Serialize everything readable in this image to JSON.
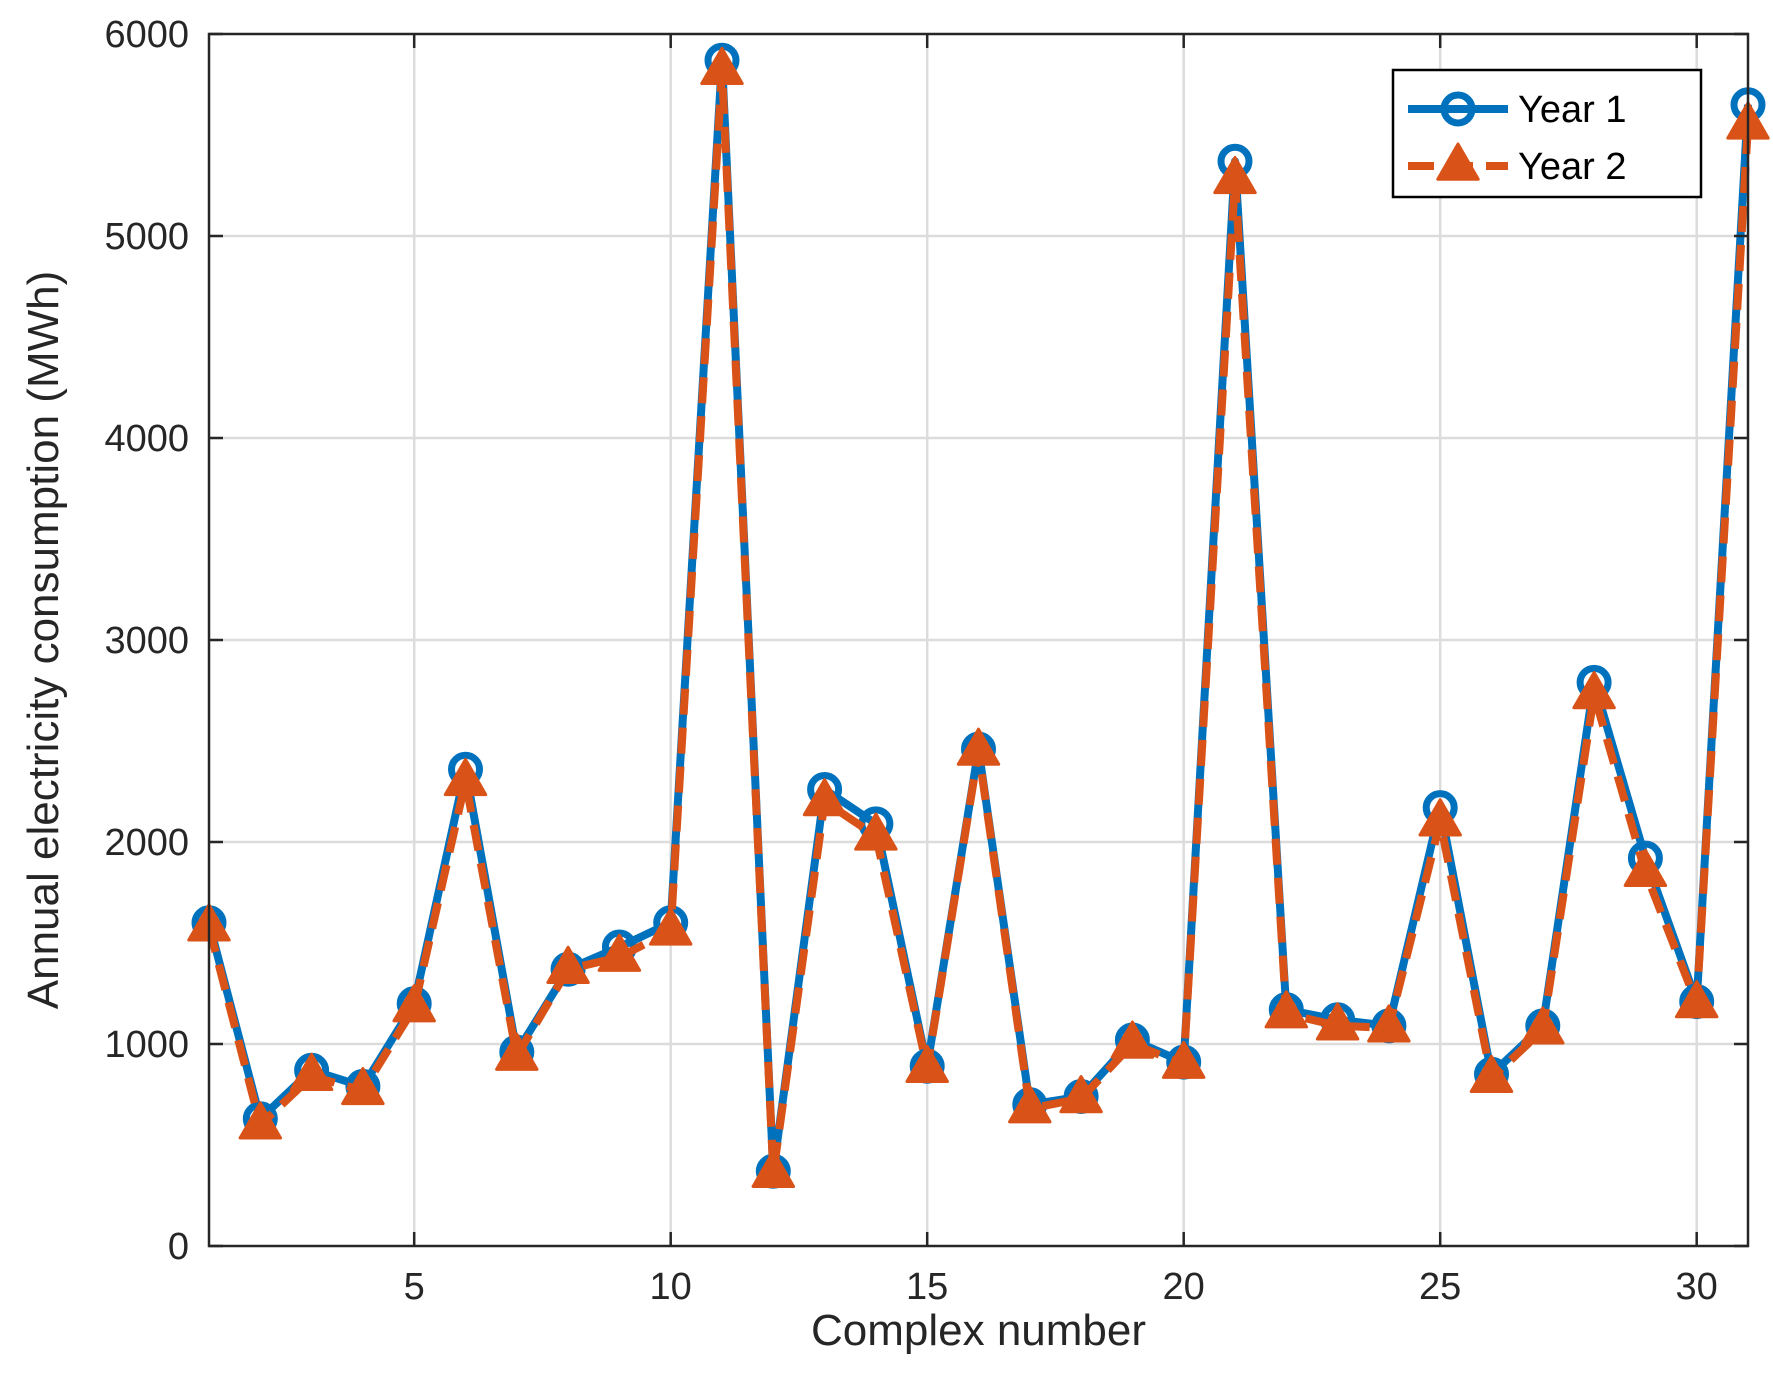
{
  "chart_data": {
    "type": "line",
    "title": "",
    "xlabel": "Complex number",
    "ylabel": "Annual electricity consumption (MWh)",
    "xlim": [
      1,
      31
    ],
    "ylim": [
      0,
      6000
    ],
    "xticks": [
      5,
      10,
      15,
      20,
      25,
      30
    ],
    "yticks": [
      0,
      1000,
      2000,
      3000,
      4000,
      5000,
      6000
    ],
    "grid": true,
    "legend_position": "top-right",
    "x": [
      1,
      2,
      3,
      4,
      5,
      6,
      7,
      8,
      9,
      10,
      11,
      12,
      13,
      14,
      15,
      16,
      17,
      18,
      19,
      20,
      21,
      22,
      23,
      24,
      25,
      26,
      27,
      28,
      29,
      30,
      31
    ],
    "series": [
      {
        "name": "Year 1",
        "color": "#0072BD",
        "line_style": "solid",
        "marker": "circle",
        "values": [
          1600,
          630,
          870,
          790,
          1200,
          2360,
          960,
          1370,
          1480,
          1600,
          5870,
          370,
          2260,
          2090,
          890,
          2460,
          700,
          740,
          1020,
          910,
          5370,
          1170,
          1120,
          1090,
          2170,
          850,
          1090,
          2790,
          1920,
          1210,
          5650
        ]
      },
      {
        "name": "Year 2",
        "color": "#D95319",
        "line_style": "dashed",
        "marker": "triangle",
        "values": [
          1580,
          600,
          840,
          770,
          1180,
          2300,
          940,
          1370,
          1430,
          1560,
          5820,
          360,
          2200,
          2030,
          880,
          2450,
          680,
          730,
          1000,
          900,
          5280,
          1150,
          1090,
          1080,
          2100,
          830,
          1070,
          2730,
          1850,
          1200,
          5550
        ]
      }
    ]
  }
}
